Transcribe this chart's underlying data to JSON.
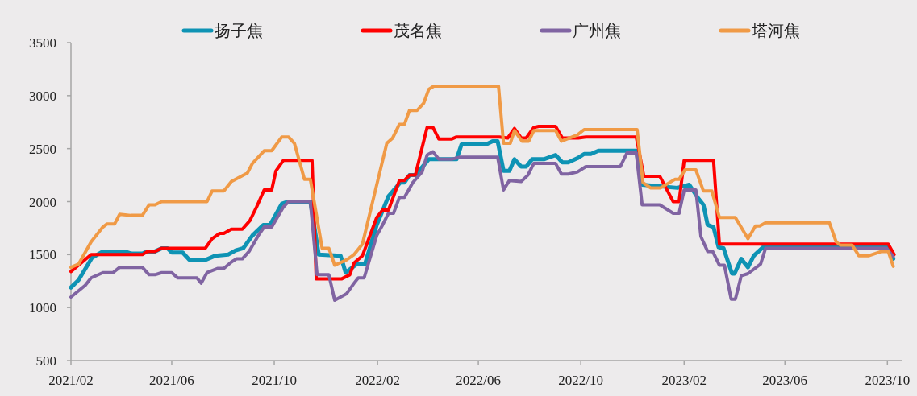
{
  "chart_data": {
    "type": "line",
    "legend": "top",
    "grid": false,
    "marker": "none",
    "line_style": "solid",
    "xlim": [
      "2021-02-01",
      "2023-10-18"
    ],
    "xticks": [
      {
        "value": "2021-02-01",
        "label": "2021/02"
      },
      {
        "value": "2021-06-01",
        "label": "2021/06"
      },
      {
        "value": "2021-10-01",
        "label": "2021/10"
      },
      {
        "value": "2022-02-01",
        "label": "2022/02"
      },
      {
        "value": "2022-06-01",
        "label": "2022/06"
      },
      {
        "value": "2022-10-01",
        "label": "2022/10"
      },
      {
        "value": "2023-02-01",
        "label": "2023/02"
      },
      {
        "value": "2023-06-01",
        "label": "2023/06"
      },
      {
        "value": "2023-10-01",
        "label": "2023/10"
      }
    ],
    "ylim": [
      500,
      3500
    ],
    "yticks": [
      500,
      1000,
      1500,
      2000,
      2500,
      3000,
      3500
    ],
    "series": [
      {
        "name": "扬子焦",
        "color": "#0e93b4",
        "x": [
          "2021-02-01",
          "2021-02-10",
          "2021-02-26",
          "2021-03-11",
          "2021-04-06",
          "2021-04-14",
          "2021-04-27",
          "2021-05-03",
          "2021-05-12",
          "2021-05-20",
          "2021-05-27",
          "2021-06-01",
          "2021-06-14",
          "2021-06-22",
          "2021-07-11",
          "2021-07-23",
          "2021-08-07",
          "2021-08-16",
          "2021-08-25",
          "2021-09-05",
          "2021-09-18",
          "2021-09-26",
          "2021-10-10",
          "2021-10-18",
          "2021-11-13",
          "2021-11-23",
          "2021-12-19",
          "2021-12-25",
          "2022-01-07",
          "2022-01-17",
          "2022-01-31",
          "2022-02-14",
          "2022-02-28",
          "2022-03-05",
          "2022-03-11",
          "2022-03-18",
          "2022-04-03",
          "2022-05-06",
          "2022-05-12",
          "2022-06-10",
          "2022-06-18",
          "2022-06-24",
          "2022-07-01",
          "2022-07-08",
          "2022-07-14",
          "2022-07-22",
          "2022-07-28",
          "2022-08-04",
          "2022-08-18",
          "2022-09-01",
          "2022-09-09",
          "2022-09-16",
          "2022-09-27",
          "2022-10-05",
          "2022-10-13",
          "2022-10-22",
          "2022-12-06",
          "2022-12-13",
          "2023-01-24",
          "2023-02-07",
          "2023-02-17",
          "2023-02-24",
          "2023-03-01",
          "2023-03-08",
          "2023-03-14",
          "2023-03-20",
          "2023-03-30",
          "2023-04-02",
          "2023-04-10",
          "2023-04-18",
          "2023-04-25",
          "2023-05-06",
          "2023-09-30",
          "2023-10-08"
        ],
        "values": [
          1190,
          1260,
          1470,
          1530,
          1530,
          1510,
          1510,
          1530,
          1530,
          1560,
          1560,
          1520,
          1520,
          1450,
          1450,
          1490,
          1500,
          1540,
          1560,
          1680,
          1780,
          1780,
          1980,
          2000,
          2000,
          1500,
          1490,
          1330,
          1410,
          1410,
          1780,
          2050,
          2180,
          2180,
          2250,
          2250,
          2400,
          2400,
          2540,
          2540,
          2570,
          2570,
          2290,
          2290,
          2400,
          2330,
          2330,
          2400,
          2400,
          2440,
          2370,
          2370,
          2410,
          2450,
          2450,
          2480,
          2480,
          2160,
          2130,
          2160,
          2040,
          1970,
          1780,
          1760,
          1570,
          1560,
          1320,
          1320,
          1460,
          1380,
          1490,
          1570,
          1570,
          1460
        ]
      },
      {
        "name": "茂名焦",
        "color": "#ff0000",
        "x": [
          "2021-02-01",
          "2021-02-10",
          "2021-02-25",
          "2021-04-27",
          "2021-05-03",
          "2021-05-12",
          "2021-05-20",
          "2021-07-11",
          "2021-07-19",
          "2021-07-28",
          "2021-08-02",
          "2021-08-11",
          "2021-08-24",
          "2021-09-02",
          "2021-09-10",
          "2021-09-19",
          "2021-09-28",
          "2021-10-03",
          "2021-10-12",
          "2021-11-15",
          "2021-11-20",
          "2021-12-20",
          "2021-12-30",
          "2022-01-04",
          "2022-01-14",
          "2022-01-31",
          "2022-02-07",
          "2022-02-14",
          "2022-02-27",
          "2022-03-05",
          "2022-03-11",
          "2022-03-18",
          "2022-04-01",
          "2022-04-08",
          "2022-04-15",
          "2022-04-30",
          "2022-05-06",
          "2022-06-26",
          "2022-07-06",
          "2022-07-14",
          "2022-07-22",
          "2022-07-28",
          "2022-08-06",
          "2022-08-12",
          "2022-09-01",
          "2022-09-09",
          "2022-09-28",
          "2022-10-07",
          "2022-12-06",
          "2022-12-15",
          "2023-01-03",
          "2023-01-19",
          "2023-01-26",
          "2023-02-01",
          "2023-03-08",
          "2023-03-15",
          "2023-10-02",
          "2023-10-09"
        ],
        "values": [
          1340,
          1400,
          1500,
          1500,
          1530,
          1530,
          1560,
          1560,
          1650,
          1700,
          1700,
          1740,
          1740,
          1820,
          1950,
          2110,
          2110,
          2290,
          2390,
          2390,
          1270,
          1270,
          1310,
          1420,
          1490,
          1850,
          1920,
          1920,
          2200,
          2200,
          2250,
          2250,
          2700,
          2700,
          2590,
          2590,
          2610,
          2610,
          2600,
          2690,
          2600,
          2600,
          2700,
          2710,
          2710,
          2600,
          2600,
          2610,
          2610,
          2240,
          2240,
          2000,
          2000,
          2390,
          2390,
          1600,
          1600,
          1500
        ]
      },
      {
        "name": "广州焦",
        "color": "#8064a2",
        "x": [
          "2021-02-01",
          "2021-02-18",
          "2021-02-25",
          "2021-03-11",
          "2021-03-23",
          "2021-03-31",
          "2021-04-27",
          "2021-05-05",
          "2021-05-12",
          "2021-05-20",
          "2021-06-01",
          "2021-06-08",
          "2021-07-01",
          "2021-07-06",
          "2021-07-13",
          "2021-07-26",
          "2021-08-02",
          "2021-08-11",
          "2021-08-17",
          "2021-08-24",
          "2021-09-01",
          "2021-09-12",
          "2021-09-19",
          "2021-09-28",
          "2021-10-12",
          "2021-10-18",
          "2021-11-13",
          "2021-11-21",
          "2021-12-05",
          "2021-12-12",
          "2021-12-26",
          "2022-01-04",
          "2022-01-09",
          "2022-01-16",
          "2022-01-31",
          "2022-02-07",
          "2022-02-14",
          "2022-02-20",
          "2022-02-27",
          "2022-03-05",
          "2022-03-15",
          "2022-03-26",
          "2022-04-01",
          "2022-04-08",
          "2022-04-15",
          "2022-04-30",
          "2022-05-10",
          "2022-06-24",
          "2022-07-01",
          "2022-07-08",
          "2022-07-22",
          "2022-07-30",
          "2022-08-06",
          "2022-09-01",
          "2022-09-08",
          "2022-09-16",
          "2022-09-27",
          "2022-10-07",
          "2022-11-17",
          "2022-11-25",
          "2022-12-06",
          "2022-12-13",
          "2023-01-03",
          "2023-01-19",
          "2023-01-26",
          "2023-02-01",
          "2023-02-15",
          "2023-02-21",
          "2023-03-01",
          "2023-03-07",
          "2023-03-15",
          "2023-03-21",
          "2023-03-29",
          "2023-04-03",
          "2023-04-10",
          "2023-04-18",
          "2023-05-03",
          "2023-05-09",
          "2023-09-30",
          "2023-10-08"
        ],
        "values": [
          1100,
          1210,
          1280,
          1330,
          1330,
          1380,
          1380,
          1310,
          1310,
          1330,
          1330,
          1280,
          1280,
          1230,
          1330,
          1370,
          1370,
          1430,
          1460,
          1460,
          1530,
          1680,
          1760,
          1760,
          1950,
          2000,
          2000,
          1310,
          1310,
          1070,
          1130,
          1230,
          1280,
          1280,
          1680,
          1780,
          1890,
          1890,
          2040,
          2040,
          2180,
          2280,
          2440,
          2470,
          2400,
          2400,
          2420,
          2420,
          2110,
          2200,
          2190,
          2250,
          2360,
          2360,
          2260,
          2260,
          2280,
          2330,
          2330,
          2460,
          2460,
          1970,
          1970,
          1890,
          1890,
          2110,
          2110,
          1670,
          1530,
          1530,
          1400,
          1400,
          1080,
          1080,
          1300,
          1320,
          1410,
          1560,
          1560,
          1480
        ]
      },
      {
        "name": "塔河焦",
        "color": "#f09a46",
        "x": [
          "2021-02-01",
          "2021-02-10",
          "2021-02-25",
          "2021-03-11",
          "2021-03-16",
          "2021-03-25",
          "2021-03-31",
          "2021-04-13",
          "2021-04-27",
          "2021-05-05",
          "2021-05-12",
          "2021-05-20",
          "2021-07-13",
          "2021-07-19",
          "2021-08-02",
          "2021-08-11",
          "2021-08-30",
          "2021-09-05",
          "2021-09-19",
          "2021-09-28",
          "2021-10-10",
          "2021-10-18",
          "2021-10-25",
          "2021-11-06",
          "2021-11-13",
          "2021-11-27",
          "2021-12-05",
          "2021-12-12",
          "2021-12-26",
          "2022-01-04",
          "2022-01-14",
          "2022-01-28",
          "2022-02-12",
          "2022-02-19",
          "2022-02-27",
          "2022-03-05",
          "2022-03-11",
          "2022-03-20",
          "2022-03-28",
          "2022-04-03",
          "2022-04-09",
          "2022-06-25",
          "2022-07-01",
          "2022-07-09",
          "2022-07-14",
          "2022-07-23",
          "2022-07-31",
          "2022-08-06",
          "2022-09-01",
          "2022-09-08",
          "2022-09-27",
          "2022-10-05",
          "2022-12-07",
          "2022-12-14",
          "2022-12-23",
          "2023-01-04",
          "2023-01-21",
          "2023-01-26",
          "2023-02-02",
          "2023-02-15",
          "2023-02-24",
          "2023-03-06",
          "2023-03-15",
          "2023-04-03",
          "2023-04-18",
          "2023-04-27",
          "2023-05-02",
          "2023-05-09",
          "2023-07-24",
          "2023-08-01",
          "2023-08-06",
          "2023-08-20",
          "2023-08-28",
          "2023-09-09",
          "2023-09-24",
          "2023-10-02",
          "2023-10-08"
        ],
        "values": [
          1380,
          1410,
          1620,
          1760,
          1790,
          1790,
          1880,
          1870,
          1870,
          1970,
          1970,
          2000,
          2000,
          2100,
          2100,
          2190,
          2270,
          2360,
          2480,
          2480,
          2610,
          2610,
          2550,
          2210,
          2210,
          1560,
          1560,
          1400,
          1450,
          1500,
          1600,
          2060,
          2550,
          2600,
          2730,
          2730,
          2860,
          2860,
          2930,
          3060,
          3090,
          3090,
          2550,
          2550,
          2670,
          2570,
          2570,
          2670,
          2670,
          2570,
          2630,
          2680,
          2680,
          2180,
          2130,
          2130,
          2210,
          2210,
          2300,
          2300,
          2100,
          2100,
          1850,
          1850,
          1650,
          1770,
          1770,
          1800,
          1800,
          1620,
          1590,
          1590,
          1490,
          1490,
          1530,
          1530,
          1390
        ]
      }
    ]
  }
}
